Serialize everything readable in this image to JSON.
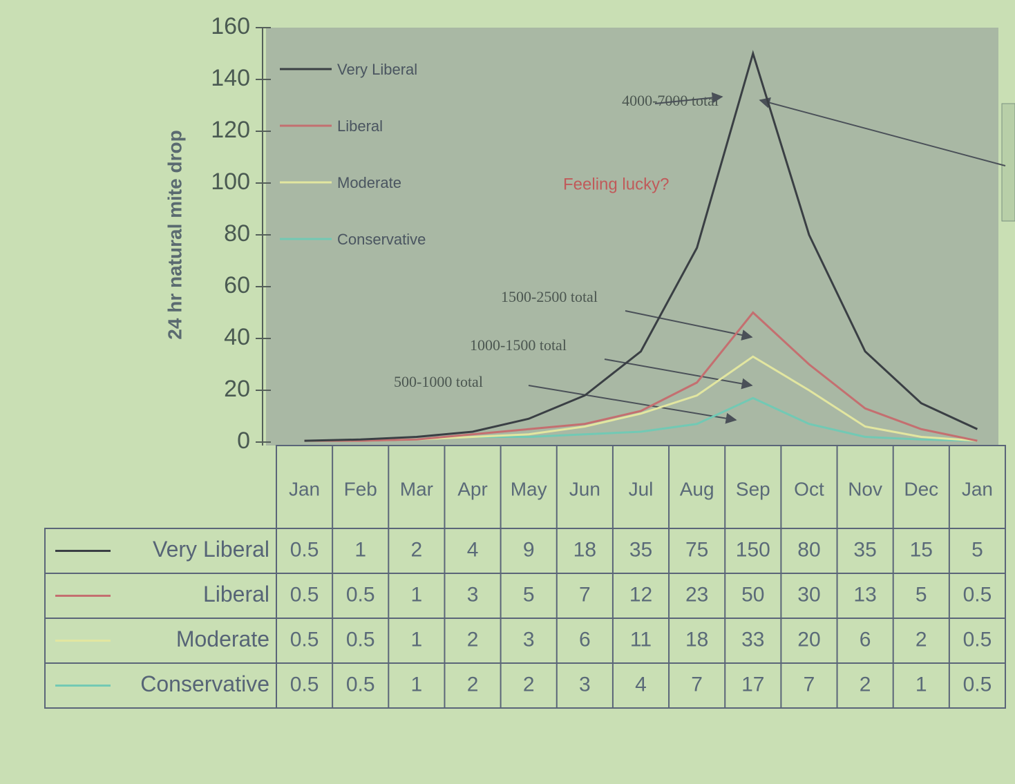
{
  "chart_data": {
    "type": "line",
    "y_label": "24 hr natural mite drop",
    "categories": [
      "Jan",
      "Feb",
      "Mar",
      "Apr",
      "May",
      "Jun",
      "Jul",
      "Aug",
      "Sep",
      "Oct",
      "Nov",
      "Dec",
      "Jan"
    ],
    "series": [
      {
        "name": "Very Liberal",
        "color": "#3a3f44",
        "values": [
          0.5,
          1,
          2,
          4,
          9,
          18,
          35,
          75,
          150,
          80,
          35,
          15,
          5
        ]
      },
      {
        "name": "Liberal",
        "color": "#c46f70",
        "values": [
          0.5,
          0.5,
          1,
          3,
          5,
          7,
          12,
          23,
          50,
          30,
          13,
          5,
          0.5
        ]
      },
      {
        "name": "Moderate",
        "color": "#e2e6a0",
        "values": [
          0.5,
          0.5,
          1,
          2,
          3,
          6,
          11,
          18,
          33,
          20,
          6,
          2,
          0.5
        ]
      },
      {
        "name": "Conservative",
        "color": "#72c9b4",
        "values": [
          0.5,
          0.5,
          1,
          2,
          2,
          3,
          4,
          7,
          17,
          7,
          2,
          1,
          0.5
        ]
      }
    ],
    "ylim": [
      0,
      160
    ],
    "yticks": [
      0,
      20,
      40,
      60,
      80,
      100,
      120,
      140,
      160
    ],
    "annotations": [
      "4000-7000 total",
      "Feeling lucky?",
      "1500-2500 total",
      "1000-1500 total",
      "500-1000 total"
    ]
  }
}
